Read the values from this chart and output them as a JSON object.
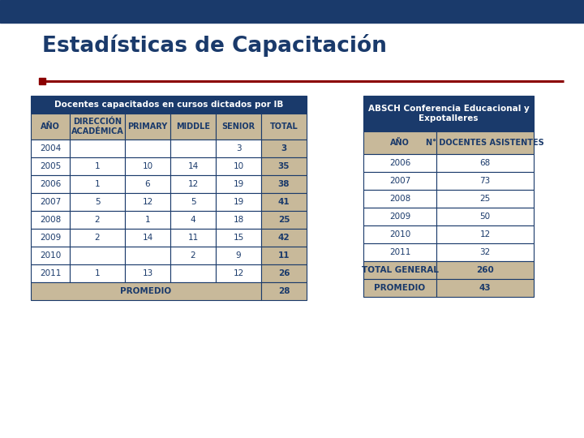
{
  "title": "Estadísticas de Capacitación",
  "bg_color": "#ffffff",
  "table1_title": "Docentes capacitados en cursos dictados por IB",
  "table1_headers": [
    "AÑO",
    "DIRECCIÓN\nACADÉMICA",
    "PRIMARY",
    "MIDDLE",
    "SENIOR",
    "TOTAL"
  ],
  "table1_rows": [
    [
      "2004",
      "",
      "",
      "",
      "3",
      "3"
    ],
    [
      "2005",
      "1",
      "10",
      "14",
      "10",
      "35"
    ],
    [
      "2006",
      "1",
      "6",
      "12",
      "19",
      "38"
    ],
    [
      "2007",
      "5",
      "12",
      "5",
      "19",
      "41"
    ],
    [
      "2008",
      "2",
      "1",
      "4",
      "18",
      "25"
    ],
    [
      "2009",
      "2",
      "14",
      "11",
      "15",
      "42"
    ],
    [
      "2010",
      "",
      "",
      "2",
      "9",
      "11"
    ],
    [
      "2011",
      "1",
      "13",
      "",
      "12",
      "26"
    ]
  ],
  "table1_footer_label": "PROMEDIO",
  "table1_footer_total": "28",
  "table2_title": "ABSCH Conferencia Educacional y\nExpotalleres",
  "table2_headers": [
    "AÑO",
    "N° DOCENTES ASISTENTES"
  ],
  "table2_rows": [
    [
      "2006",
      "68"
    ],
    [
      "2007",
      "73"
    ],
    [
      "2008",
      "25"
    ],
    [
      "2009",
      "50"
    ],
    [
      "2010",
      "12"
    ],
    [
      "2011",
      "32"
    ]
  ],
  "table2_footer1": [
    "TOTAL GENERAL",
    "260"
  ],
  "table2_footer2": [
    "PROMEDIO",
    "43"
  ],
  "dark_navy": "#1a3a6b",
  "tan_bg": "#c8b99a",
  "red_line": "#8b0000",
  "top_bar_color": "#1a3a6b",
  "white": "#ffffff"
}
